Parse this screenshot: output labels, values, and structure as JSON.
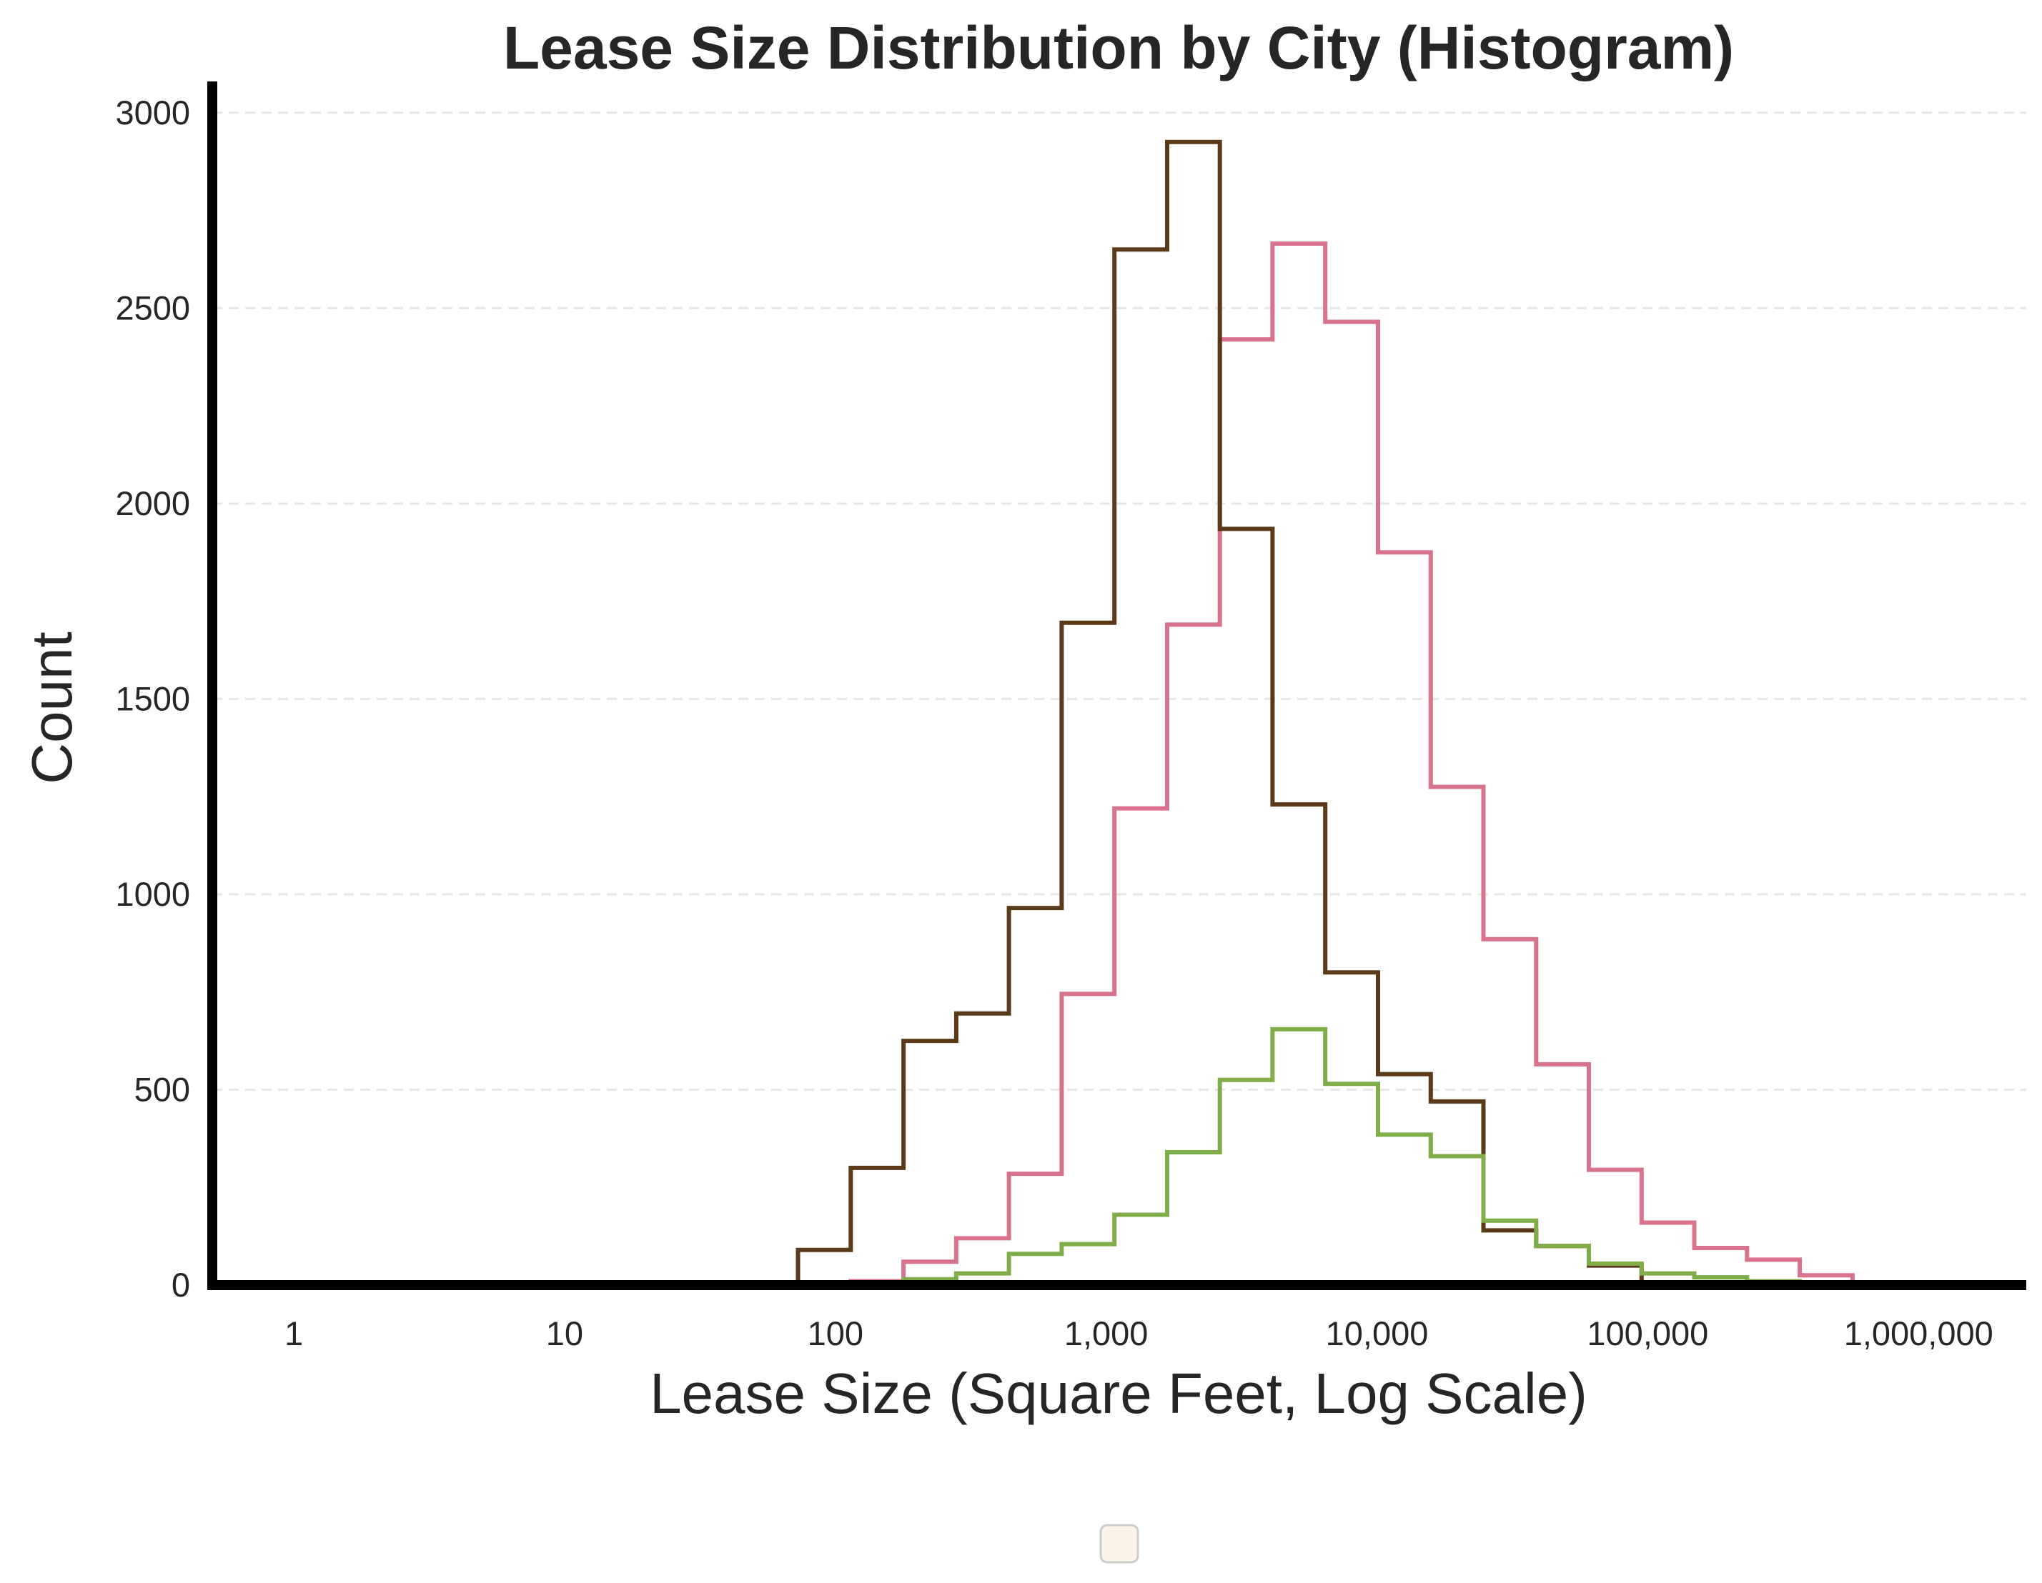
{
  "chart_data": {
    "type": "histogram",
    "title": "Lease Size Distribution by City (Histogram)",
    "xlabel": "Lease Size (Square Feet, Log Scale)",
    "ylabel": "Count",
    "x_scale": "log",
    "xlim": [
      0.5,
      2500000
    ],
    "ylim": [
      0,
      3080
    ],
    "x_ticks": [
      {
        "value": 1,
        "label": "1"
      },
      {
        "value": 10,
        "label": "10"
      },
      {
        "value": 100,
        "label": "100"
      },
      {
        "value": 1000,
        "label": "1,000"
      },
      {
        "value": 10000,
        "label": "10,000"
      },
      {
        "value": 100000,
        "label": "100,000"
      },
      {
        "value": 1000000,
        "label": "1,000,000"
      }
    ],
    "y_ticks": [
      {
        "value": 0,
        "label": "0"
      },
      {
        "value": 500,
        "label": "500"
      },
      {
        "value": 1000,
        "label": "1000"
      },
      {
        "value": 1500,
        "label": "1500"
      },
      {
        "value": 2000,
        "label": "2000"
      },
      {
        "value": 2500,
        "label": "2500"
      },
      {
        "value": 3000,
        "label": "3000"
      }
    ],
    "grid": "horizontal dashed",
    "legend": "bottom-center (empty)",
    "bin_edges": [
      46.5,
      72.8,
      114,
      178.5,
      279.5,
      437.5,
      685,
      1073,
      1680,
      2630,
      4115,
      6445,
      10090,
      15800,
      24730,
      38720,
      60630,
      94930,
      148600,
      232700,
      364300,
      570400,
      893100,
      1398000
    ],
    "series": [
      {
        "color": "#d9738d",
        "values": [
          5,
          5,
          10,
          60,
          120,
          285,
          745,
          1220,
          1690,
          2420,
          2665,
          2465,
          1875,
          1275,
          885,
          565,
          295,
          160,
          95,
          65,
          25,
          5,
          5
        ]
      },
      {
        "color": "#5b3a1a",
        "values": [
          5,
          90,
          300,
          625,
          695,
          965,
          1695,
          2650,
          2925,
          1935,
          1230,
          800,
          540,
          470,
          140,
          100,
          50,
          5,
          5,
          5,
          5,
          5,
          5
        ]
      },
      {
        "color": "#7fae48",
        "values": [
          0,
          0,
          5,
          15,
          30,
          80,
          105,
          180,
          340,
          525,
          655,
          515,
          385,
          330,
          165,
          100,
          55,
          30,
          20,
          10,
          5,
          0,
          0
        ]
      }
    ],
    "colors": {
      "axis": "#000000",
      "grid": "#e6e6e6",
      "text": "#262626",
      "legend_swatch": "#fbf5e9"
    }
  }
}
